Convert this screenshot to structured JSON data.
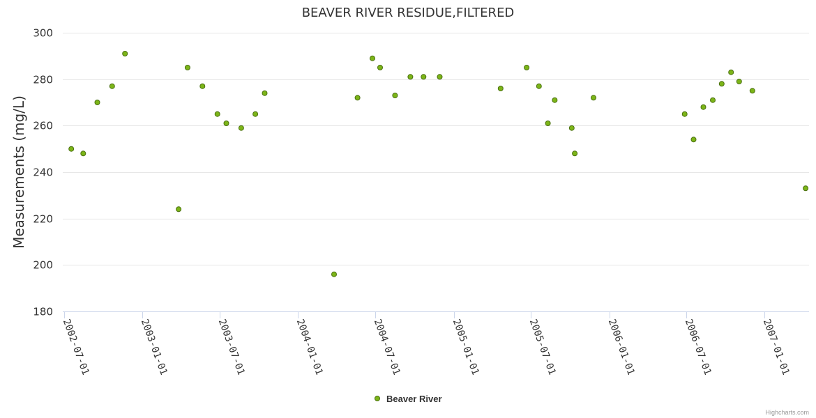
{
  "chart_data": {
    "type": "scatter",
    "title": "BEAVER RIVER RESIDUE,FILTERED",
    "xlabel": "",
    "ylabel": "Measurements (mg/L)",
    "ylim": [
      180,
      300
    ],
    "yticks": [
      "180",
      "200",
      "220",
      "240",
      "260",
      "280",
      "300"
    ],
    "xlim": [
      "2002-06-28",
      "2007-04-15"
    ],
    "xticks": [
      "2002-07-01",
      "2003-01-01",
      "2003-07-01",
      "2004-01-01",
      "2004-07-01",
      "2005-01-01",
      "2005-07-01",
      "2006-01-01",
      "2006-07-01",
      "2007-01-01"
    ],
    "series": [
      {
        "name": "Beaver River",
        "color": "#7cb518",
        "points": [
          {
            "x": "2002-07-18",
            "y": 250
          },
          {
            "x": "2002-08-15",
            "y": 248
          },
          {
            "x": "2002-09-17",
            "y": 270
          },
          {
            "x": "2002-10-22",
            "y": 277
          },
          {
            "x": "2002-11-21",
            "y": 291
          },
          {
            "x": "2003-03-27",
            "y": 224
          },
          {
            "x": "2003-04-17",
            "y": 285
          },
          {
            "x": "2003-05-22",
            "y": 277
          },
          {
            "x": "2003-06-26",
            "y": 265
          },
          {
            "x": "2003-07-17",
            "y": 261
          },
          {
            "x": "2003-08-21",
            "y": 259
          },
          {
            "x": "2003-09-23",
            "y": 265
          },
          {
            "x": "2003-10-15",
            "y": 274
          },
          {
            "x": "2004-03-26",
            "y": 196
          },
          {
            "x": "2004-05-20",
            "y": 272
          },
          {
            "x": "2004-06-24",
            "y": 289
          },
          {
            "x": "2004-07-12",
            "y": 285
          },
          {
            "x": "2004-08-16",
            "y": 273
          },
          {
            "x": "2004-09-21",
            "y": 281
          },
          {
            "x": "2004-10-22",
            "y": 281
          },
          {
            "x": "2004-11-29",
            "y": 281
          },
          {
            "x": "2005-04-21",
            "y": 276
          },
          {
            "x": "2005-06-21",
            "y": 285
          },
          {
            "x": "2005-07-20",
            "y": 277
          },
          {
            "x": "2005-08-10",
            "y": 261
          },
          {
            "x": "2005-08-26",
            "y": 271
          },
          {
            "x": "2005-10-05",
            "y": 259
          },
          {
            "x": "2005-10-12",
            "y": 248
          },
          {
            "x": "2005-11-25",
            "y": 272
          },
          {
            "x": "2006-06-27",
            "y": 265
          },
          {
            "x": "2006-07-18",
            "y": 254
          },
          {
            "x": "2006-08-10",
            "y": 268
          },
          {
            "x": "2006-09-01",
            "y": 271
          },
          {
            "x": "2006-09-22",
            "y": 278
          },
          {
            "x": "2006-10-14",
            "y": 283
          },
          {
            "x": "2006-11-02",
            "y": 279
          },
          {
            "x": "2006-12-03",
            "y": 275
          },
          {
            "x": "2007-04-07",
            "y": 233
          }
        ]
      }
    ],
    "legend": {
      "position": "bottom-center"
    },
    "credits": "Highcharts.com",
    "grid": true
  }
}
